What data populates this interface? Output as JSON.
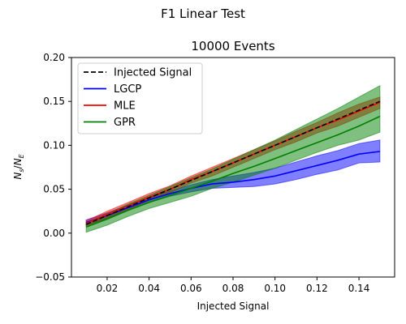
{
  "figure": {
    "suptitle": "F1 Linear Test"
  },
  "chart_data": {
    "type": "line",
    "title": "10000 Events",
    "xlabel": "Injected Signal",
    "ylabel_main": "N",
    "ylabel_num_sub": "s",
    "ylabel_slash": "/",
    "ylabel_den_sub": "E",
    "xlim": [
      0.003,
      0.157
    ],
    "ylim": [
      -0.05,
      0.2
    ],
    "xticks": [
      0.02,
      0.04,
      0.06,
      0.08,
      0.1,
      0.12,
      0.14
    ],
    "xtick_labels": [
      "0.02",
      "0.04",
      "0.06",
      "0.08",
      "0.10",
      "0.12",
      "0.14"
    ],
    "yticks": [
      -0.05,
      0.0,
      0.05,
      0.1,
      0.15,
      0.2
    ],
    "ytick_labels": [
      "−0.05",
      "0.00",
      "0.05",
      "0.10",
      "0.15",
      "0.20"
    ],
    "grid": false,
    "legend_position": "top-left",
    "x": [
      0.01,
      0.02,
      0.03,
      0.04,
      0.05,
      0.06,
      0.07,
      0.08,
      0.09,
      0.1,
      0.11,
      0.12,
      0.13,
      0.14,
      0.15
    ],
    "series": [
      {
        "name": "Injected Signal",
        "color": "#000000",
        "dashed": true,
        "values": [
          0.01,
          0.02,
          0.03,
          0.04,
          0.05,
          0.06,
          0.07,
          0.08,
          0.09,
          0.1,
          0.11,
          0.12,
          0.13,
          0.14,
          0.15
        ]
      },
      {
        "name": "LGCP",
        "color": "#0000ff",
        "dashed": false,
        "values": [
          0.012,
          0.02,
          0.029,
          0.038,
          0.045,
          0.051,
          0.056,
          0.058,
          0.061,
          0.065,
          0.071,
          0.077,
          0.083,
          0.09,
          0.093
        ],
        "lower": [
          0.009,
          0.017,
          0.026,
          0.035,
          0.042,
          0.047,
          0.051,
          0.052,
          0.053,
          0.056,
          0.061,
          0.067,
          0.072,
          0.08,
          0.081
        ],
        "upper": [
          0.015,
          0.023,
          0.032,
          0.041,
          0.048,
          0.055,
          0.061,
          0.065,
          0.069,
          0.074,
          0.081,
          0.088,
          0.094,
          0.102,
          0.106
        ]
      },
      {
        "name": "MLE",
        "color": "#ff0000",
        "dashed": false,
        "values": [
          0.011,
          0.021,
          0.031,
          0.041,
          0.05,
          0.061,
          0.07,
          0.08,
          0.09,
          0.1,
          0.11,
          0.12,
          0.129,
          0.139,
          0.149
        ],
        "lower": [
          0.008,
          0.017,
          0.027,
          0.037,
          0.046,
          0.057,
          0.065,
          0.075,
          0.085,
          0.095,
          0.104,
          0.114,
          0.122,
          0.132,
          0.142
        ],
        "upper": [
          0.014,
          0.025,
          0.035,
          0.045,
          0.054,
          0.065,
          0.075,
          0.085,
          0.095,
          0.105,
          0.116,
          0.126,
          0.137,
          0.147,
          0.155
        ]
      },
      {
        "name": "GPR",
        "color": "#008000",
        "dashed": false,
        "values": [
          0.007,
          0.016,
          0.026,
          0.035,
          0.043,
          0.051,
          0.059,
          0.068,
          0.076,
          0.085,
          0.094,
          0.103,
          0.112,
          0.122,
          0.133
        ],
        "lower": [
          0.001,
          0.009,
          0.019,
          0.028,
          0.035,
          0.042,
          0.051,
          0.058,
          0.066,
          0.074,
          0.083,
          0.092,
          0.1,
          0.106,
          0.115
        ],
        "upper": [
          0.012,
          0.022,
          0.033,
          0.043,
          0.053,
          0.063,
          0.073,
          0.084,
          0.095,
          0.106,
          0.118,
          0.13,
          0.142,
          0.155,
          0.168
        ]
      }
    ]
  }
}
